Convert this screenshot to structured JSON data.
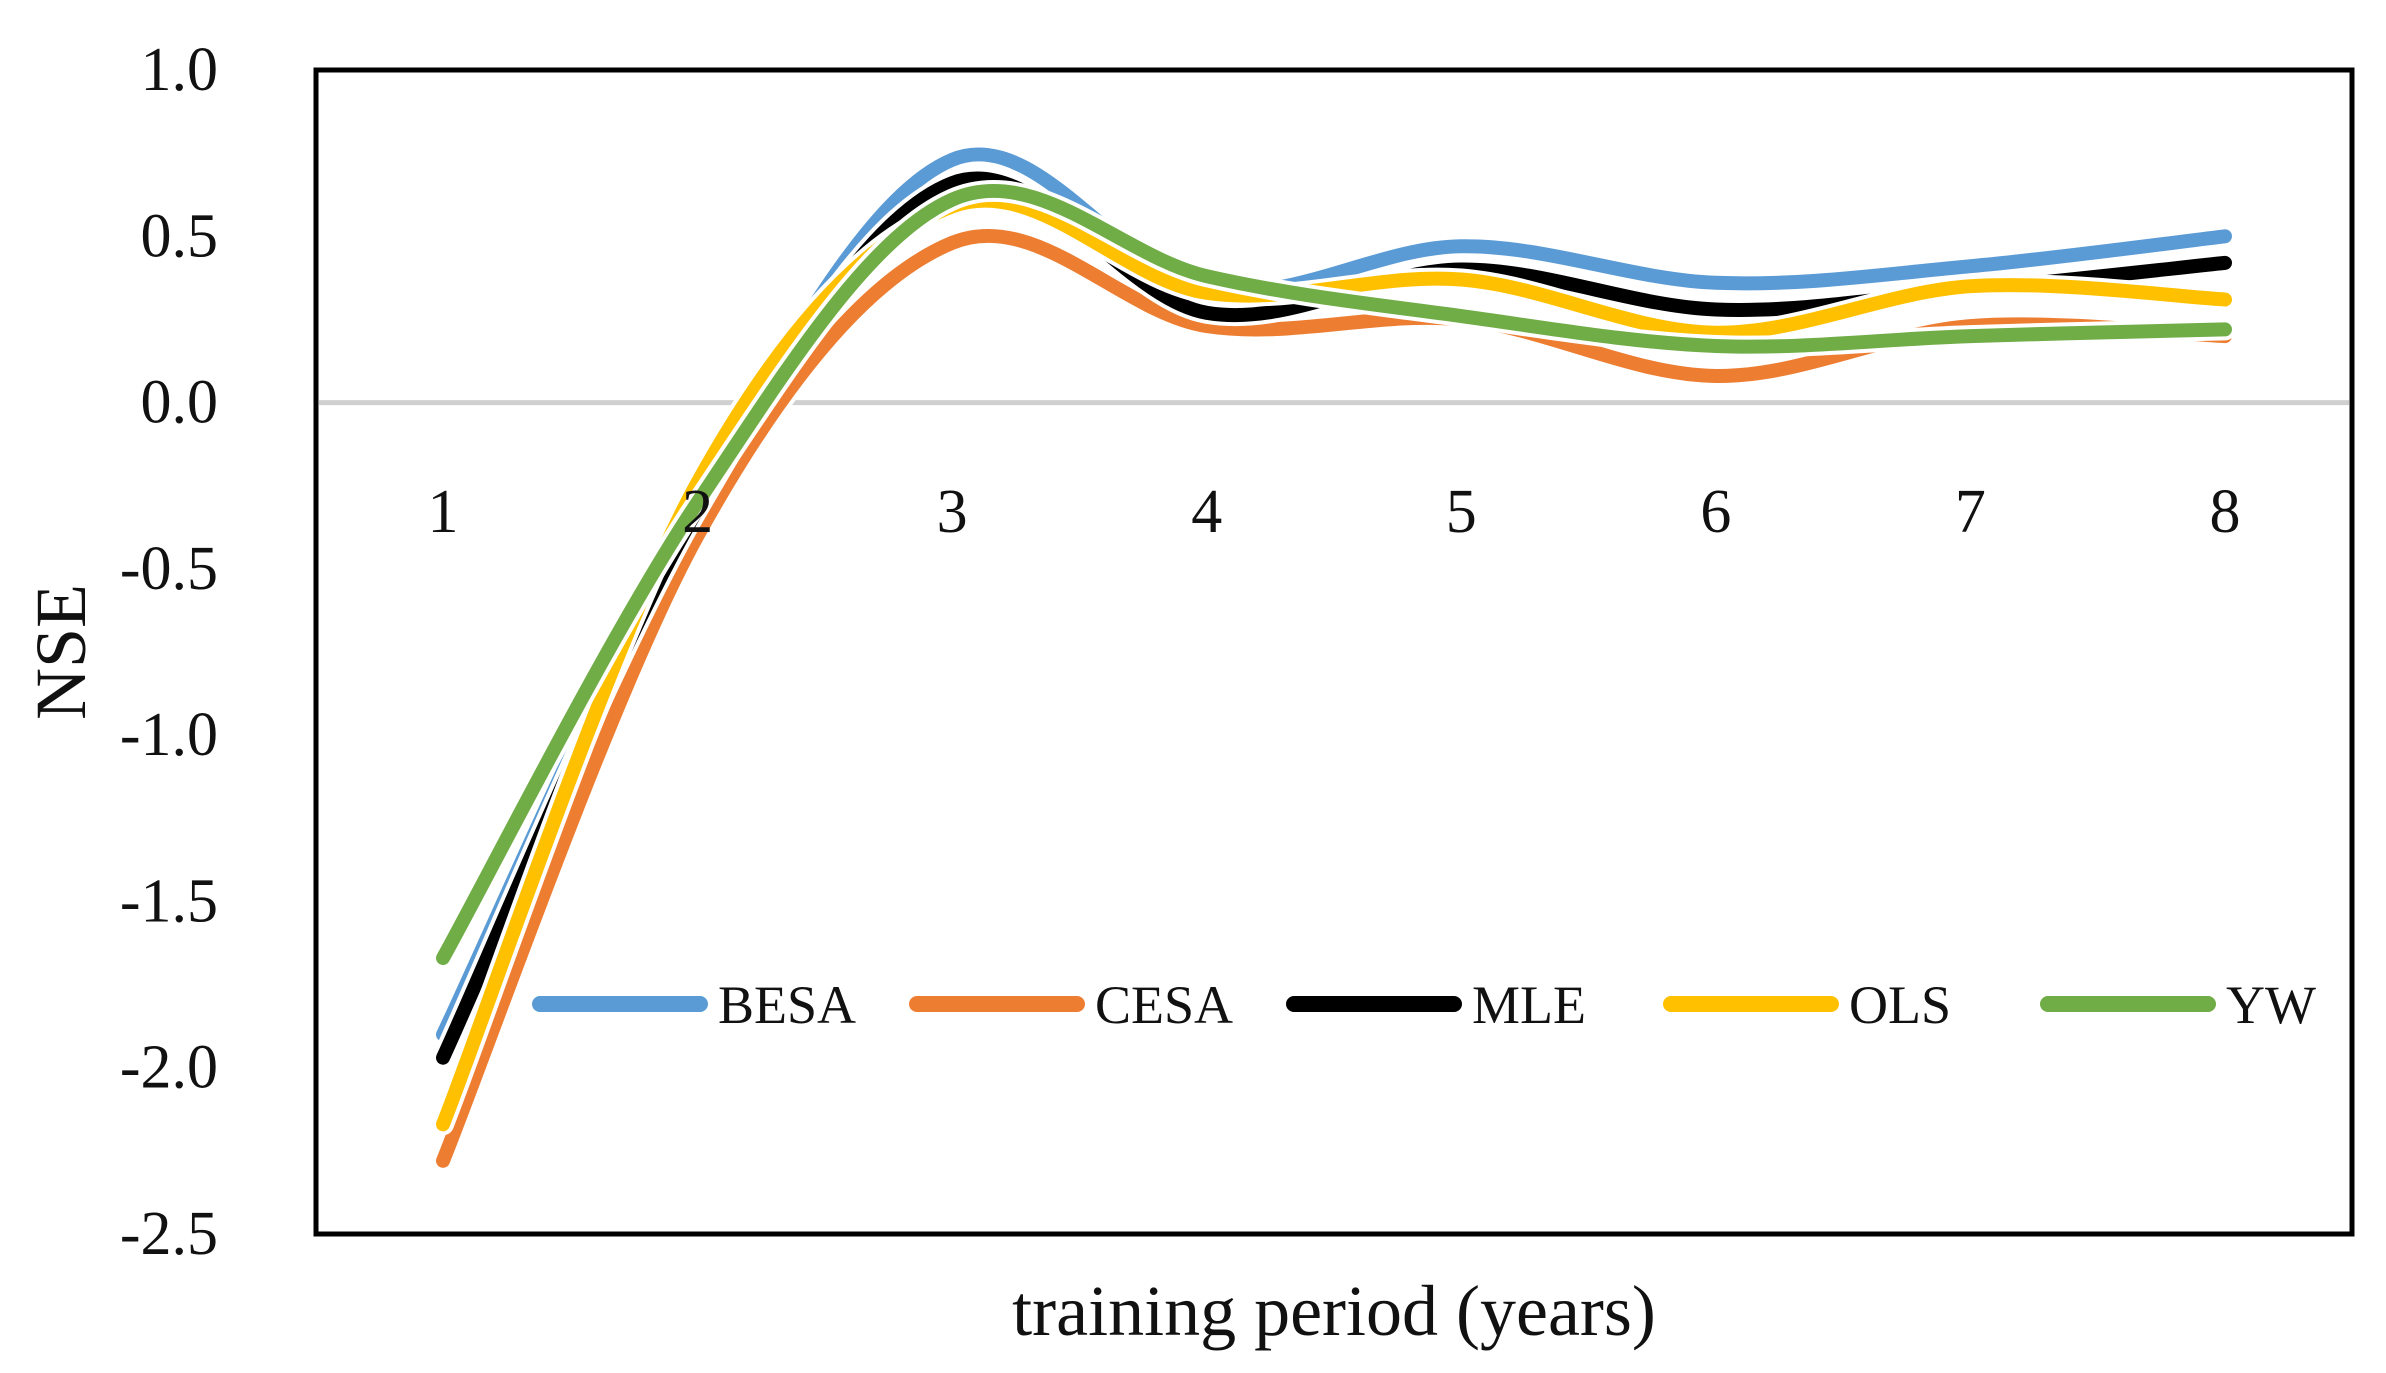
{
  "chart_data": {
    "type": "line",
    "title": "",
    "xlabel": "training period (years)",
    "ylabel": "NSE",
    "x": [
      1,
      2,
      3,
      4,
      5,
      6,
      7,
      8
    ],
    "x_tick_labels": [
      "1",
      "2",
      "3",
      "4",
      "5",
      "6",
      "7",
      "8"
    ],
    "y_tick_labels": [
      "1.0",
      "0.5",
      "0.0",
      "-0.5",
      "-1.0",
      "-1.5",
      "-2.0",
      "-2.5"
    ],
    "y_ticks": [
      1.0,
      0.5,
      0.0,
      -0.5,
      -1.0,
      -1.5,
      -2.0,
      -2.5
    ],
    "ylim": [
      -2.5,
      1.0
    ],
    "grid": false,
    "zero_line": true,
    "zero_line_color": "#d0d0d0",
    "smooth": true,
    "legend_position": "inside-lower",
    "series": [
      {
        "name": "BESA",
        "color": "#5b9bd5",
        "values": [
          -1.9,
          -0.3,
          0.73,
          0.34,
          0.47,
          0.36,
          0.41,
          0.5
        ]
      },
      {
        "name": "CESA",
        "color": "#ed7d31",
        "values": [
          -2.28,
          -0.4,
          0.48,
          0.23,
          0.25,
          0.08,
          0.23,
          0.2
        ]
      },
      {
        "name": "MLE",
        "color": "#000000",
        "values": [
          -1.97,
          -0.32,
          0.66,
          0.27,
          0.4,
          0.28,
          0.34,
          0.42
        ]
      },
      {
        "name": "OLS",
        "color": "#ffc000",
        "values": [
          -2.17,
          -0.24,
          0.59,
          0.33,
          0.37,
          0.21,
          0.35,
          0.31
        ]
      },
      {
        "name": "YW",
        "color": "#70ad47",
        "values": [
          -1.67,
          -0.3,
          0.61,
          0.38,
          0.26,
          0.17,
          0.2,
          0.22
        ]
      }
    ]
  }
}
